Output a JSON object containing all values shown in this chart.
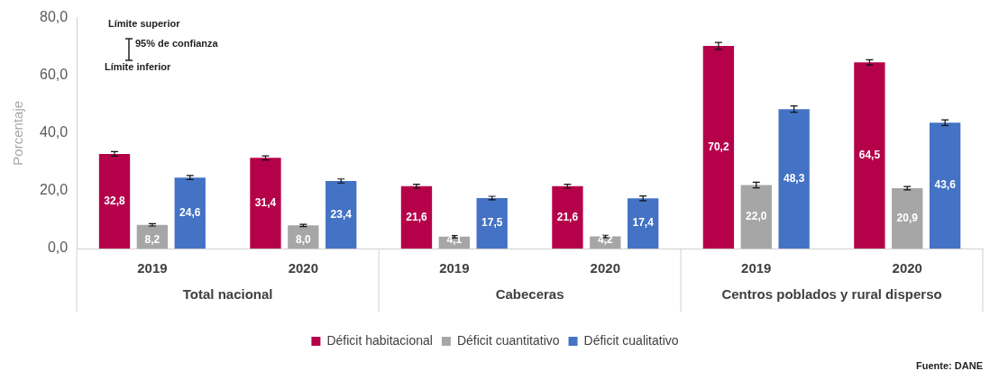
{
  "chart_data": {
    "type": "bar",
    "ylabel": "Porcentaje",
    "categories": [
      "2019",
      "2020",
      "2019",
      "2020",
      "2019",
      "2020"
    ],
    "series": [
      {
        "name": "Déficit habitacional",
        "color": "#b5004a",
        "values": [
          32.8,
          31.4,
          21.6,
          21.6,
          70.2,
          64.5
        ],
        "value_labels": [
          "32,8",
          "31,4",
          "21,6",
          "21,6",
          "70,2",
          "64,5"
        ],
        "errors": [
          0.8,
          0.7,
          0.7,
          0.7,
          1.2,
          0.9
        ]
      },
      {
        "name": "Déficit cuantitativo",
        "color": "#a6a6a6",
        "values": [
          8.2,
          8.0,
          4.1,
          4.2,
          22.0,
          20.9
        ],
        "value_labels": [
          "8,2",
          "8,0",
          "4,1",
          "4,2",
          "22,0",
          "20,9"
        ],
        "errors": [
          0.4,
          0.4,
          0.4,
          0.4,
          1.0,
          0.6
        ]
      },
      {
        "name": "Déficit cualitativo",
        "color": "#4472c4",
        "values": [
          24.6,
          23.4,
          17.5,
          17.4,
          48.3,
          43.6
        ],
        "value_labels": [
          "24,6",
          "23,4",
          "17,5",
          "17,4",
          "48,3",
          "43,6"
        ],
        "errors": [
          0.7,
          0.7,
          0.6,
          0.8,
          1.1,
          1.0
        ]
      }
    ],
    "ylim": [
      0,
      80
    ],
    "yticks": [
      {
        "value": 0,
        "label": "0,0"
      },
      {
        "value": 20,
        "label": "20,0"
      },
      {
        "value": 40,
        "label": "40,0"
      },
      {
        "value": 60,
        "label": "60,0"
      },
      {
        "value": 80,
        "label": "80,0"
      }
    ],
    "grid": false,
    "legend": "bottom",
    "annotations": [
      "Total nacional",
      "Cabeceras",
      "Centros poblados y rural disperso",
      "Límite superior",
      "95% de confianza",
      "Límite inferior",
      "Fuente: DANE"
    ]
  }
}
